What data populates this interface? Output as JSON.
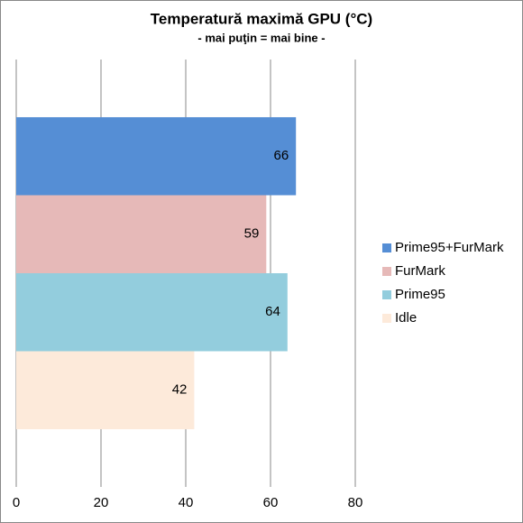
{
  "chart_data": {
    "type": "bar",
    "title": "Temperatură maximă GPU (°C)",
    "subtitle": "- mai puţin = mai bine -",
    "categories": [
      null
    ],
    "series": [
      {
        "name": "Prime95+FurMark",
        "color": "#558ed5",
        "values": [
          66
        ]
      },
      {
        "name": "FurMark",
        "color": "#e6b9b8",
        "values": [
          59
        ]
      },
      {
        "name": "Prime95",
        "color": "#93cddd",
        "values": [
          64
        ]
      },
      {
        "name": "Idle",
        "color": "#fdeada",
        "values": [
          42
        ]
      }
    ],
    "xlim": [
      0,
      80
    ],
    "xticks": [
      0,
      20,
      40,
      60,
      80
    ],
    "grid": true
  }
}
